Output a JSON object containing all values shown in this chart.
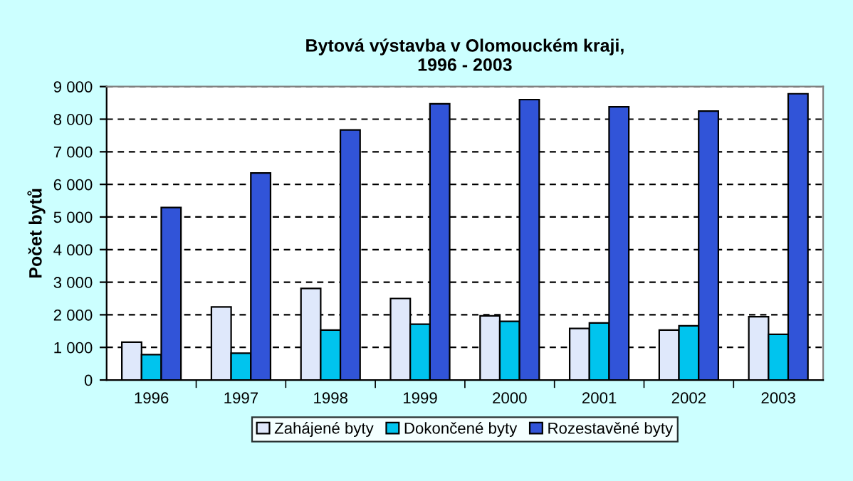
{
  "chart_data": {
    "type": "bar",
    "title": "Bytová výstavba v Olomouckém kraji,\n1996 - 2003",
    "ylabel": "Počet bytů",
    "categories": [
      "1996",
      "1997",
      "1998",
      "1999",
      "2000",
      "2001",
      "2002",
      "2003"
    ],
    "series": [
      {
        "name": "Zahájené byty",
        "color": "#dfe8fb",
        "values": [
          1160,
          2240,
          2810,
          2500,
          1970,
          1580,
          1530,
          1940
        ]
      },
      {
        "name": "Dokončené byty",
        "color": "#00c4ee",
        "values": [
          780,
          820,
          1530,
          1710,
          1800,
          1750,
          1660,
          1400
        ]
      },
      {
        "name": "Rozestavěné byty",
        "color": "#3154d8",
        "values": [
          5290,
          6350,
          7670,
          8470,
          8600,
          8380,
          8250,
          8780
        ]
      }
    ],
    "ylim": [
      0,
      9000
    ],
    "yticks": [
      {
        "value": 0,
        "label": "0"
      },
      {
        "value": 1000,
        "label": "1 000"
      },
      {
        "value": 2000,
        "label": "2 000"
      },
      {
        "value": 3000,
        "label": "3 000"
      },
      {
        "value": 4000,
        "label": "4 000"
      },
      {
        "value": 5000,
        "label": "5 000"
      },
      {
        "value": 6000,
        "label": "6 000"
      },
      {
        "value": 7000,
        "label": "7 000"
      },
      {
        "value": 8000,
        "label": "8 000"
      },
      {
        "value": 9000,
        "label": "9 000"
      }
    ],
    "grid": "y",
    "legend": "bottom"
  }
}
